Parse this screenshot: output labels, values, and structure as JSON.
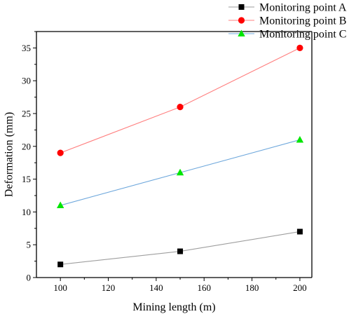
{
  "chart_data": {
    "type": "line",
    "title": "",
    "xlabel": "Mining length (m)",
    "ylabel": "Deformation (mm)",
    "xlim": [
      90,
      205
    ],
    "ylim": [
      0,
      37.5
    ],
    "xticks": [
      100,
      120,
      140,
      160,
      180,
      200
    ],
    "yticks": [
      0,
      5,
      10,
      15,
      20,
      25,
      30,
      35
    ],
    "grid": false,
    "legend_position": "top-right, outside plot",
    "x": [
      100,
      150,
      200
    ],
    "series": [
      {
        "name": "Monitoring point A",
        "values": [
          2,
          4,
          7
        ],
        "marker": "square",
        "marker_color": "#000000",
        "line_color": "#9e9e9e"
      },
      {
        "name": "Monitoring point B",
        "values": [
          19,
          26,
          35
        ],
        "marker": "circle",
        "marker_color": "#ff0000",
        "line_color": "#ff7f7f"
      },
      {
        "name": "Monitoring point C",
        "values": [
          11,
          16,
          21
        ],
        "marker": "triangle",
        "marker_color": "#00e600",
        "line_color": "#6fa8dc"
      }
    ]
  }
}
